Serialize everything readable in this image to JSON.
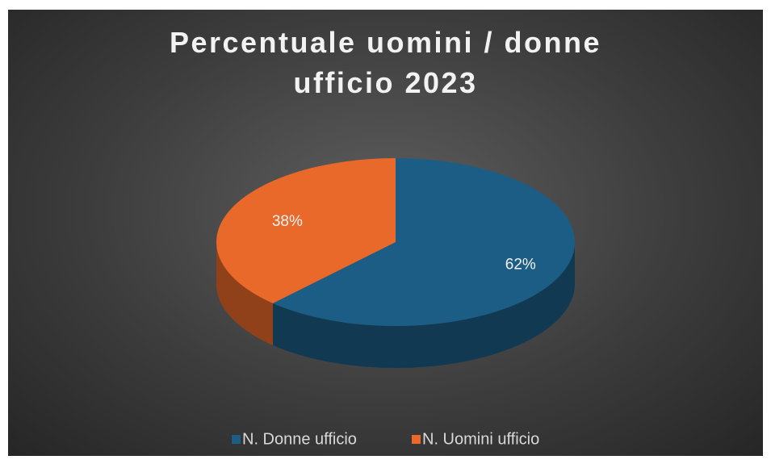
{
  "chart_data": {
    "type": "pie3d",
    "title": "Percentuale uomini / donne ufficio 2023",
    "categories": [
      "N. Donne ufficio",
      "N. Uomini ufficio"
    ],
    "values": [
      62,
      38
    ],
    "value_labels": [
      "62%",
      "38%"
    ],
    "colors": [
      "#1c5d85",
      "#e8692a"
    ],
    "legend": "bottom"
  }
}
